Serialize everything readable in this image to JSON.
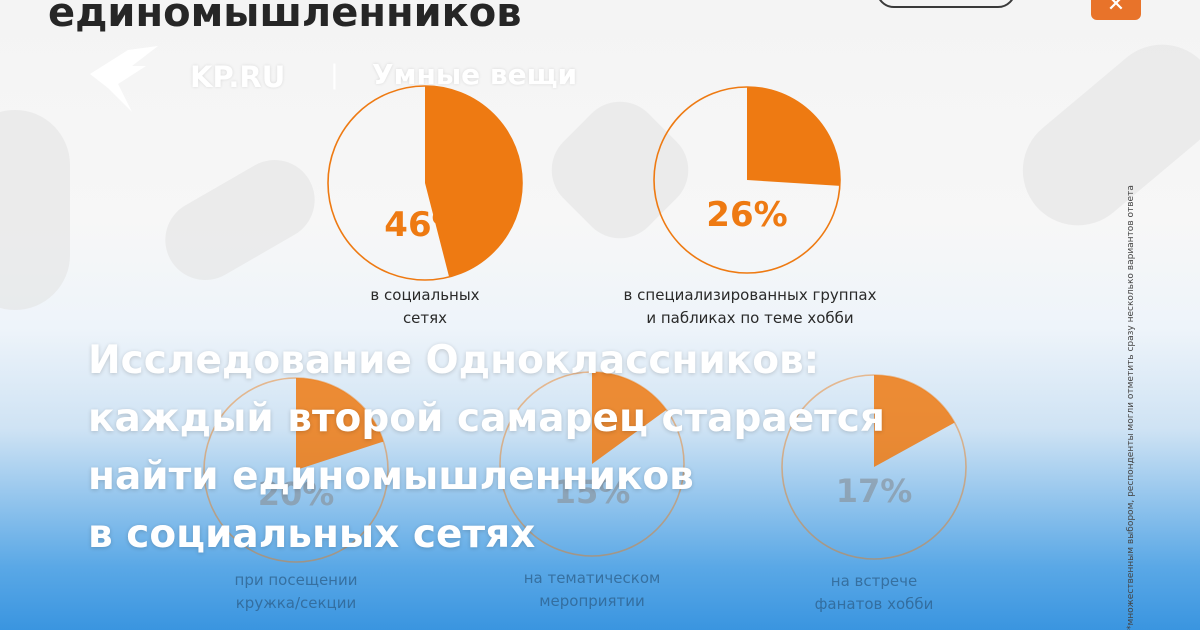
{
  "header": {
    "heading_fragment": "единомышленников",
    "close_symbol": "✕"
  },
  "brand": {
    "logo_icon": "swallow-bird-icon",
    "site": "KP.RU",
    "separator": "|",
    "section": "Умные вещи"
  },
  "colors": {
    "accent": "#ee7a12",
    "headline": "#ffffff",
    "blue": "#3a95e0"
  },
  "infographic": {
    "items": [
      {
        "percent_label": "46%",
        "value": 46,
        "caption_lines": [
          "в социальных",
          "сетях"
        ]
      },
      {
        "percent_label": "26%",
        "value": 26,
        "caption_lines": [
          "в специализированных группах",
          "и пабликах по теме хобби"
        ]
      },
      {
        "percent_label": "20%",
        "value": 20,
        "caption_lines": [
          "при посещении",
          "кружка/секции"
        ]
      },
      {
        "percent_label": "15%",
        "value": 15,
        "caption_lines": [
          "на тематическом",
          "мероприятии"
        ]
      },
      {
        "percent_label": "17%",
        "value": 17,
        "caption_lines": [
          "на встрече",
          "фанатов хобби"
        ]
      }
    ],
    "side_note": "*множественным выбором, респонденты могли отметить сразу несколько вариантов ответа"
  },
  "headline": {
    "lines": [
      "Исследование Одноклассников:",
      "каждый второй самарец старается",
      "найти единомышленников",
      "в социальных сетях"
    ]
  }
}
